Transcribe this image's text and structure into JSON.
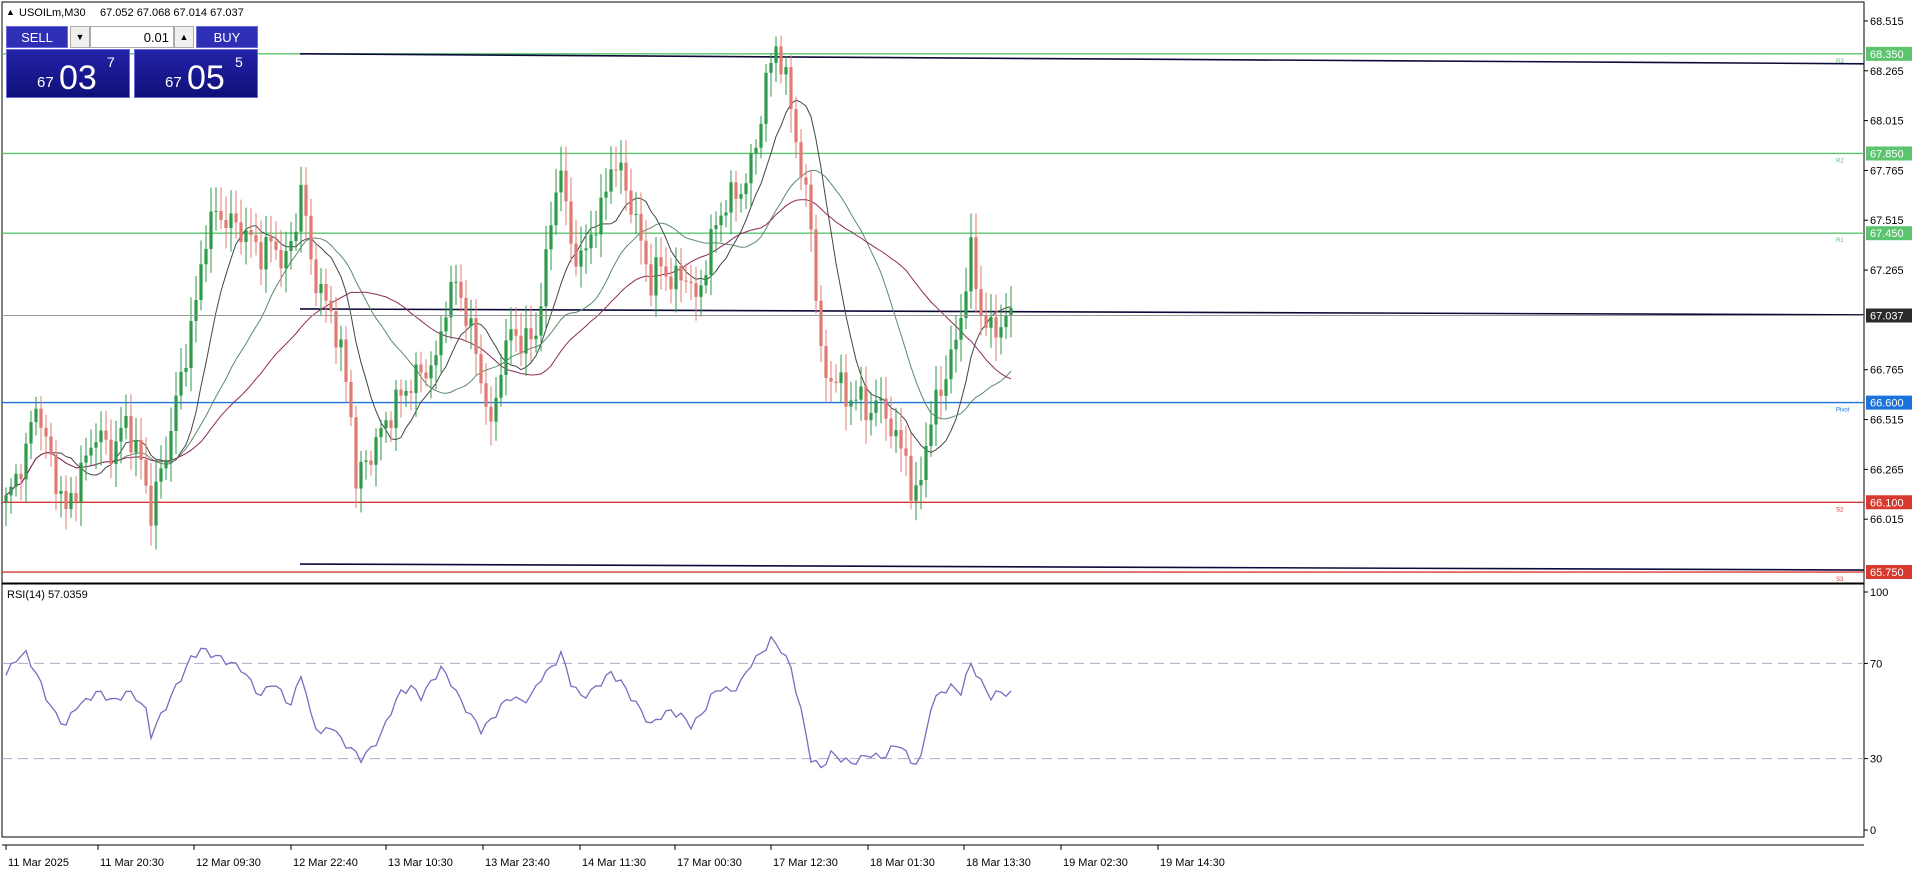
{
  "header": {
    "symbol": "USOILm,M30",
    "ohlc": "67.052 67.068 67.014 67.037"
  },
  "trade_panel": {
    "sell_label": "SELL",
    "buy_label": "BUY",
    "lot": "0.01",
    "sell_price": {
      "prefix": "67",
      "big": "03",
      "sup": "7"
    },
    "buy_price": {
      "prefix": "67",
      "big": "05",
      "sup": "5"
    }
  },
  "colors": {
    "bull": "#2e9a4a",
    "bear": "#e07b73",
    "resistance": "#5cc46e",
    "pivot": "#1a73d9",
    "support": "#d63a2f",
    "rsi": "#7a6cc0",
    "ma_fast": "#444444",
    "ma_slow": "#8e2a5a",
    "ma_mid": "#5a8a6a",
    "channel": "#0b0b3a"
  },
  "chart_data": [
    {
      "type": "candlestick",
      "title": "USOILm,M30",
      "ylim": [
        65.72,
        68.6
      ],
      "y_ticks": [
        "68.515",
        "68.265",
        "68.015",
        "67.765",
        "67.515",
        "67.265",
        "66.765",
        "66.515",
        "66.265",
        "66.015"
      ],
      "x_ticks": [
        "11 Mar 2025",
        "11 Mar 20:30",
        "12 Mar 09:30",
        "12 Mar 22:40",
        "13 Mar 10:30",
        "13 Mar 23:40",
        "14 Mar 11:30",
        "17 Mar 00:30",
        "17 Mar 12:30",
        "18 Mar 01:30",
        "18 Mar 13:30",
        "19 Mar 02:30",
        "19 Mar 14:30"
      ],
      "levels": [
        {
          "label": "R3",
          "value": 68.35,
          "price_label": "68.350",
          "kind": "resistance"
        },
        {
          "label": "R2",
          "value": 67.85,
          "price_label": "67.850",
          "kind": "resistance"
        },
        {
          "label": "R1",
          "value": 67.45,
          "price_label": "67.450",
          "kind": "resistance"
        },
        {
          "label": "Pivot",
          "value": 66.6,
          "price_label": "66.600",
          "kind": "pivot"
        },
        {
          "label": "S2",
          "value": 66.1,
          "price_label": "66.100",
          "kind": "support"
        },
        {
          "label": "S3",
          "value": 65.75,
          "price_label": "65.750",
          "kind": "support"
        }
      ],
      "current_price": {
        "value": 67.037,
        "label": "67.037"
      },
      "close_path": [
        [
          0,
          66.1
        ],
        [
          4,
          66.35
        ],
        [
          6,
          66.6
        ],
        [
          9,
          66.3
        ],
        [
          12,
          66.05
        ],
        [
          15,
          66.25
        ],
        [
          18,
          66.45
        ],
        [
          21,
          66.35
        ],
        [
          24,
          66.5
        ],
        [
          27,
          66.3
        ],
        [
          29,
          66.05
        ],
        [
          32,
          66.35
        ],
        [
          34,
          66.6
        ],
        [
          36,
          66.85
        ],
        [
          38,
          67.1
        ],
        [
          40,
          67.45
        ],
        [
          42,
          67.55
        ],
        [
          45,
          67.5
        ],
        [
          48,
          67.45
        ],
        [
          51,
          67.35
        ],
        [
          53,
          67.4
        ],
        [
          56,
          67.3
        ],
        [
          58,
          67.5
        ],
        [
          59,
          67.7
        ],
        [
          61,
          67.3
        ],
        [
          63,
          67.15
        ],
        [
          65,
          67.05
        ],
        [
          67,
          66.85
        ],
        [
          69,
          66.55
        ],
        [
          70,
          66.2
        ],
        [
          71,
          66.25
        ],
        [
          73,
          66.35
        ],
        [
          75,
          66.45
        ],
        [
          78,
          66.6
        ],
        [
          81,
          66.7
        ],
        [
          83,
          66.75
        ],
        [
          86,
          66.8
        ],
        [
          88,
          67.1
        ],
        [
          90,
          67.2
        ],
        [
          92,
          67.05
        ],
        [
          94,
          66.85
        ],
        [
          96,
          66.6
        ],
        [
          97,
          66.45
        ],
        [
          99,
          66.8
        ],
        [
          101,
          66.95
        ],
        [
          104,
          66.9
        ],
        [
          106,
          66.95
        ],
        [
          108,
          67.3
        ],
        [
          110,
          67.7
        ],
        [
          111,
          67.75
        ],
        [
          113,
          67.4
        ],
        [
          115,
          67.3
        ],
        [
          117,
          67.45
        ],
        [
          119,
          67.55
        ],
        [
          121,
          67.8
        ],
        [
          123,
          67.75
        ],
        [
          125,
          67.6
        ],
        [
          127,
          67.4
        ],
        [
          129,
          67.2
        ],
        [
          131,
          67.3
        ],
        [
          133,
          67.2
        ],
        [
          136,
          67.25
        ],
        [
          138,
          67.1
        ],
        [
          140,
          67.3
        ],
        [
          142,
          67.5
        ],
        [
          144,
          67.6
        ],
        [
          146,
          67.65
        ],
        [
          148,
          67.7
        ],
        [
          150,
          67.9
        ],
        [
          152,
          68.2
        ],
        [
          154,
          68.4
        ],
        [
          155,
          68.3
        ],
        [
          157,
          68.1
        ],
        [
          159,
          67.75
        ],
        [
          161,
          67.5
        ],
        [
          162,
          67.15
        ],
        [
          163,
          66.85
        ],
        [
          164,
          66.7
        ],
        [
          166,
          66.75
        ],
        [
          168,
          66.6
        ],
        [
          170,
          66.65
        ],
        [
          172,
          66.55
        ],
        [
          174,
          66.6
        ],
        [
          176,
          66.55
        ],
        [
          178,
          66.4
        ],
        [
          180,
          66.35
        ],
        [
          181,
          66.15
        ],
        [
          182,
          66.1
        ],
        [
          184,
          66.4
        ],
        [
          186,
          66.6
        ],
        [
          188,
          66.75
        ],
        [
          190,
          66.9
        ],
        [
          192,
          67.2
        ],
        [
          193,
          67.35
        ],
        [
          195,
          67.05
        ],
        [
          197,
          66.95
        ],
        [
          199,
          67.0
        ],
        [
          201,
          67.037
        ]
      ],
      "n_candles": 202
    },
    {
      "type": "line",
      "title": "RSI(14) 57.0359",
      "ylim": [
        0,
        100
      ],
      "y_ticks": [
        "100",
        "70",
        "30",
        "0"
      ],
      "guide_levels": [
        70,
        30
      ],
      "rsi_path": [
        [
          0,
          65
        ],
        [
          2,
          72
        ],
        [
          4,
          74
        ],
        [
          6,
          66
        ],
        [
          8,
          56
        ],
        [
          10,
          48
        ],
        [
          12,
          44
        ],
        [
          14,
          52
        ],
        [
          16,
          54
        ],
        [
          18,
          58
        ],
        [
          20,
          56
        ],
        [
          22,
          54
        ],
        [
          24,
          58
        ],
        [
          26,
          56
        ],
        [
          28,
          50
        ],
        [
          29,
          40
        ],
        [
          31,
          48
        ],
        [
          33,
          56
        ],
        [
          35,
          64
        ],
        [
          37,
          72
        ],
        [
          39,
          76
        ],
        [
          41,
          74
        ],
        [
          43,
          72
        ],
        [
          45,
          70
        ],
        [
          47,
          68
        ],
        [
          49,
          62
        ],
        [
          51,
          56
        ],
        [
          53,
          62
        ],
        [
          55,
          58
        ],
        [
          57,
          52
        ],
        [
          59,
          66
        ],
        [
          61,
          48
        ],
        [
          63,
          40
        ],
        [
          65,
          44
        ],
        [
          67,
          38
        ],
        [
          69,
          34
        ],
        [
          71,
          30
        ],
        [
          73,
          34
        ],
        [
          75,
          40
        ],
        [
          77,
          50
        ],
        [
          79,
          58
        ],
        [
          81,
          60
        ],
        [
          83,
          56
        ],
        [
          85,
          62
        ],
        [
          87,
          68
        ],
        [
          89,
          62
        ],
        [
          91,
          54
        ],
        [
          93,
          48
        ],
        [
          95,
          42
        ],
        [
          97,
          46
        ],
        [
          99,
          52
        ],
        [
          101,
          56
        ],
        [
          103,
          54
        ],
        [
          105,
          56
        ],
        [
          107,
          64
        ],
        [
          109,
          68
        ],
        [
          111,
          74
        ],
        [
          113,
          62
        ],
        [
          115,
          56
        ],
        [
          117,
          58
        ],
        [
          119,
          62
        ],
        [
          121,
          66
        ],
        [
          123,
          62
        ],
        [
          125,
          56
        ],
        [
          127,
          50
        ],
        [
          129,
          44
        ],
        [
          131,
          48
        ],
        [
          133,
          50
        ],
        [
          135,
          48
        ],
        [
          137,
          44
        ],
        [
          139,
          48
        ],
        [
          141,
          56
        ],
        [
          143,
          60
        ],
        [
          145,
          58
        ],
        [
          147,
          62
        ],
        [
          149,
          70
        ],
        [
          151,
          74
        ],
        [
          153,
          80
        ],
        [
          155,
          76
        ],
        [
          157,
          68
        ],
        [
          159,
          50
        ],
        [
          161,
          30
        ],
        [
          163,
          26
        ],
        [
          165,
          32
        ],
        [
          167,
          30
        ],
        [
          169,
          28
        ],
        [
          171,
          30
        ],
        [
          173,
          32
        ],
        [
          175,
          30
        ],
        [
          177,
          34
        ],
        [
          179,
          36
        ],
        [
          181,
          28
        ],
        [
          183,
          30
        ],
        [
          185,
          52
        ],
        [
          187,
          58
        ],
        [
          189,
          60
        ],
        [
          191,
          58
        ],
        [
          193,
          70
        ],
        [
          195,
          62
        ],
        [
          197,
          56
        ],
        [
          199,
          58
        ],
        [
          201,
          57
        ]
      ]
    }
  ]
}
